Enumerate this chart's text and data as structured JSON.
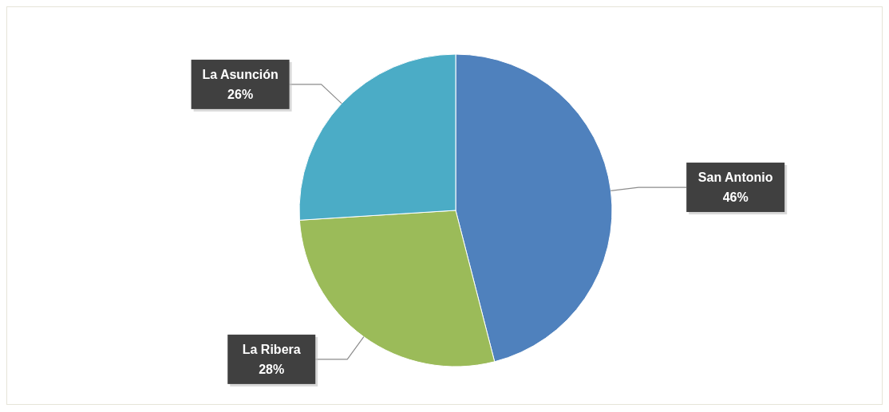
{
  "chart_data": {
    "type": "pie",
    "categories": [
      "San Antonio",
      "La Ribera",
      "La Asunción"
    ],
    "values": [
      46,
      28,
      26
    ],
    "colors": [
      "#4f81bd",
      "#9bbb59",
      "#4bacc6"
    ],
    "value_labels": [
      "46%",
      "28%",
      "26%"
    ],
    "legend": false
  }
}
